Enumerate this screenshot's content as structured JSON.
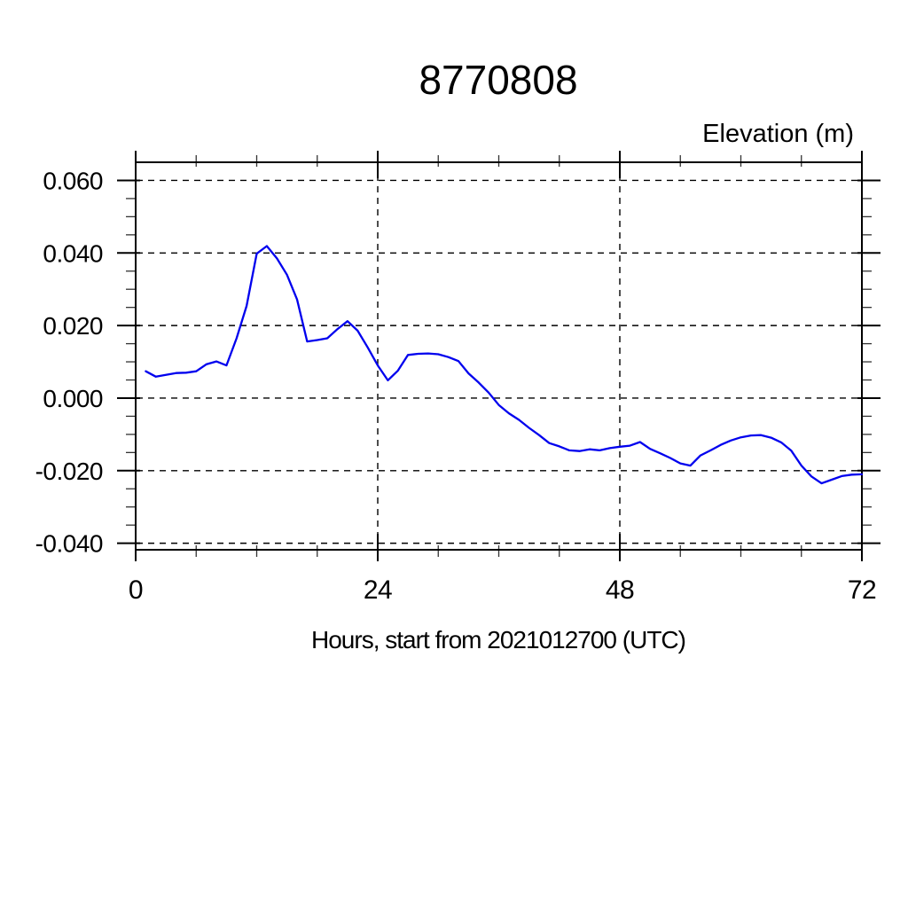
{
  "chart_data": {
    "type": "line",
    "title": "8770808",
    "ylabel": "Elevation (m)",
    "xlabel": "Hours, start from 2021012700 (UTC)",
    "xlim": [
      0,
      72
    ],
    "ylim": [
      -0.0418,
      0.065
    ],
    "x_major_ticks": [
      0,
      24,
      48,
      72
    ],
    "x_minor_step": 6,
    "y_major_ticks": [
      0.06,
      0.04,
      0.02,
      0.0,
      -0.02,
      -0.04
    ],
    "y_minor_step": 0.005,
    "grid": "dashed-black-at-major-ticks",
    "legend_position": "none",
    "line_color": "#0000ee",
    "axis_color": "#000000",
    "series": [
      {
        "name": "elevation",
        "x": [
          1,
          2,
          3,
          4,
          5,
          6,
          7,
          8,
          9,
          10,
          11,
          12,
          13,
          14,
          15,
          16,
          17,
          18,
          19,
          20,
          21,
          22,
          23,
          24,
          25,
          26,
          27,
          28,
          29,
          30,
          31,
          32,
          33,
          34,
          35,
          36,
          37,
          38,
          39,
          40,
          41,
          42,
          43,
          44,
          45,
          46,
          47,
          48,
          49,
          50,
          51,
          52,
          53,
          54,
          55,
          56,
          57,
          58,
          59,
          60,
          61,
          62,
          63,
          64,
          65,
          66,
          67,
          68,
          69,
          70,
          71,
          72
        ],
        "values": [
          0.0074,
          0.0059,
          0.0064,
          0.0069,
          0.007,
          0.0074,
          0.0093,
          0.0101,
          0.009,
          0.0165,
          0.0254,
          0.0398,
          0.0419,
          0.0385,
          0.034,
          0.0272,
          0.0156,
          0.016,
          0.0165,
          0.019,
          0.0212,
          0.0186,
          0.014,
          0.009,
          0.0049,
          0.0076,
          0.0119,
          0.0122,
          0.0123,
          0.0121,
          0.0113,
          0.0102,
          0.0068,
          0.0043,
          0.0015,
          -0.0019,
          -0.0042,
          -0.006,
          -0.0082,
          -0.0102,
          -0.0124,
          -0.0133,
          -0.0144,
          -0.0146,
          -0.0141,
          -0.0144,
          -0.0138,
          -0.0134,
          -0.0131,
          -0.0121,
          -0.014,
          -0.0152,
          -0.0165,
          -0.018,
          -0.0186,
          -0.0158,
          -0.0144,
          -0.0129,
          -0.0117,
          -0.0108,
          -0.0103,
          -0.0102,
          -0.0109,
          -0.0122,
          -0.0145,
          -0.0186,
          -0.0216,
          -0.0235,
          -0.0225,
          -0.0215,
          -0.0211,
          -0.021
        ]
      }
    ]
  }
}
